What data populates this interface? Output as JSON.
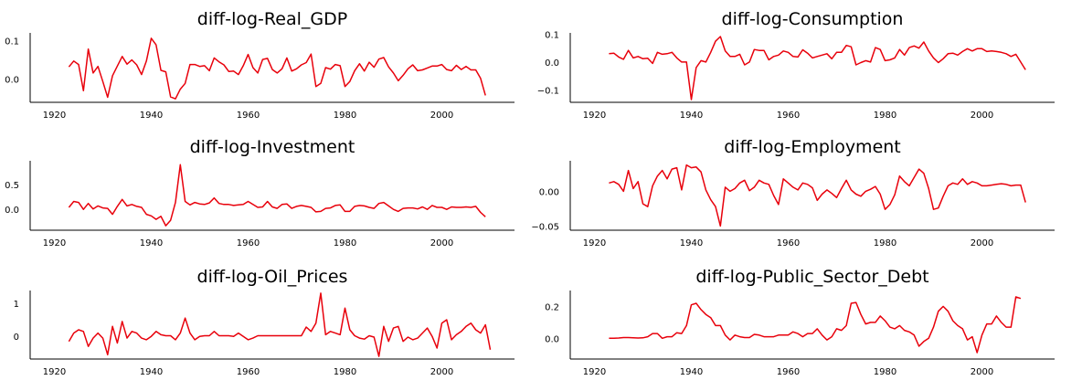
{
  "colors": {
    "line": "#e8000b",
    "axis": "#000000",
    "background": "#ffffff"
  },
  "chart_data": [
    {
      "type": "line",
      "title": "diff-log-Real_GDP",
      "xlim": [
        1915,
        2015
      ],
      "ylim": [
        -0.06,
        0.12
      ],
      "xticks": [
        1920,
        1940,
        1960,
        1980,
        2000
      ],
      "xtick_labels": [
        "1920",
        "1940",
        "1960",
        "1980",
        "2000"
      ],
      "yticks": [
        0.0,
        0.1
      ],
      "ytick_labels": [
        "0.0",
        "0.1"
      ],
      "x_start": 1923,
      "values": [
        0.032,
        0.047,
        0.038,
        -0.03,
        0.078,
        0.016,
        0.033,
        -0.006,
        -0.047,
        0.009,
        0.034,
        0.059,
        0.039,
        0.05,
        0.037,
        0.012,
        0.047,
        0.106,
        0.089,
        0.023,
        0.019,
        -0.046,
        -0.051,
        -0.026,
        -0.011,
        0.038,
        0.038,
        0.033,
        0.035,
        0.022,
        0.055,
        0.045,
        0.037,
        0.02,
        0.021,
        0.012,
        0.035,
        0.064,
        0.03,
        0.016,
        0.051,
        0.054,
        0.025,
        0.016,
        0.027,
        0.055,
        0.021,
        0.027,
        0.037,
        0.043,
        0.065,
        -0.019,
        -0.011,
        0.03,
        0.026,
        0.038,
        0.035,
        -0.019,
        -0.006,
        0.022,
        0.04,
        0.021,
        0.044,
        0.031,
        0.052,
        0.056,
        0.032,
        0.016,
        -0.004,
        0.01,
        0.027,
        0.037,
        0.022,
        0.024,
        0.029,
        0.034,
        0.034,
        0.038,
        0.025,
        0.022,
        0.036,
        0.025,
        0.033,
        0.024,
        0.024,
        0.002,
        -0.042
      ]
    },
    {
      "type": "line",
      "title": "diff-log-Consumption",
      "xlim": [
        1915,
        2015
      ],
      "ylim": [
        -0.145,
        0.105
      ],
      "xticks": [
        1920,
        1940,
        1960,
        1980,
        2000
      ],
      "xtick_labels": [
        "1920",
        "1940",
        "1960",
        "1980",
        "2000"
      ],
      "yticks": [
        -0.1,
        0.0,
        0.1
      ],
      "ytick_labels": [
        "−0.1",
        "0.0",
        "0.1"
      ],
      "x_start": 1923,
      "values": [
        0.03,
        0.032,
        0.018,
        0.01,
        0.042,
        0.015,
        0.02,
        0.012,
        0.014,
        -0.005,
        0.035,
        0.028,
        0.03,
        0.035,
        0.015,
        0.0,
        0.0,
        -0.135,
        -0.02,
        0.005,
        0.0,
        0.035,
        0.075,
        0.092,
        0.04,
        0.02,
        0.02,
        0.028,
        -0.01,
        0.0,
        0.045,
        0.042,
        0.042,
        0.008,
        0.02,
        0.025,
        0.04,
        0.035,
        0.02,
        0.018,
        0.044,
        0.032,
        0.015,
        0.02,
        0.025,
        0.03,
        0.012,
        0.035,
        0.035,
        0.06,
        0.055,
        -0.01,
        -0.002,
        0.005,
        0.0,
        0.052,
        0.045,
        0.005,
        0.008,
        0.015,
        0.045,
        0.025,
        0.052,
        0.058,
        0.05,
        0.072,
        0.04,
        0.015,
        -0.002,
        0.012,
        0.03,
        0.032,
        0.025,
        0.038,
        0.048,
        0.04,
        0.048,
        0.048,
        0.038,
        0.04,
        0.038,
        0.035,
        0.03,
        0.02,
        0.028,
        0.0,
        -0.028
      ]
    },
    {
      "type": "line",
      "title": "diff-log-Investment",
      "xlim": [
        1915,
        2015
      ],
      "ylim": [
        -0.42,
        0.98
      ],
      "xticks": [
        1920,
        1940,
        1960,
        1980,
        2000
      ],
      "xtick_labels": [
        "1920",
        "1940",
        "1960",
        "1980",
        "2000"
      ],
      "yticks": [
        0.0,
        0.5
      ],
      "ytick_labels": [
        "0.0",
        "0.5"
      ],
      "x_start": 1923,
      "values": [
        0.04,
        0.16,
        0.14,
        0.0,
        0.12,
        0.01,
        0.07,
        0.03,
        0.02,
        -0.1,
        0.06,
        0.2,
        0.07,
        0.1,
        0.06,
        0.04,
        -0.1,
        -0.13,
        -0.2,
        -0.14,
        -0.33,
        -0.22,
        0.14,
        0.9,
        0.16,
        0.09,
        0.14,
        0.11,
        0.1,
        0.13,
        0.23,
        0.12,
        0.1,
        0.1,
        0.08,
        0.09,
        0.1,
        0.16,
        0.1,
        0.04,
        0.05,
        0.16,
        0.05,
        0.02,
        0.1,
        0.11,
        0.02,
        0.06,
        0.08,
        0.06,
        0.04,
        -0.05,
        -0.04,
        0.02,
        0.03,
        0.08,
        0.09,
        -0.04,
        -0.04,
        0.06,
        0.08,
        0.07,
        0.04,
        0.02,
        0.12,
        0.14,
        0.07,
        0.0,
        -0.04,
        0.02,
        0.03,
        0.03,
        0.01,
        0.05,
        0.0,
        0.08,
        0.04,
        0.04,
        0.0,
        0.05,
        0.04,
        0.04,
        0.05,
        0.04,
        0.06,
        -0.06,
        -0.15
      ]
    },
    {
      "type": "line",
      "title": "diff-log-Employment",
      "xlim": [
        1915,
        2015
      ],
      "ylim": [
        -0.056,
        0.044
      ],
      "xticks": [
        1920,
        1940,
        1960,
        1980,
        2000
      ],
      "xtick_labels": [
        "1920",
        "1940",
        "1960",
        "1980",
        "2000"
      ],
      "yticks": [
        -0.05,
        0.0
      ],
      "ytick_labels": [
        "−0.05",
        "0.00"
      ],
      "x_start": 1923,
      "values": [
        0.012,
        0.014,
        0.01,
        0.0,
        0.03,
        0.004,
        0.014,
        -0.018,
        -0.022,
        0.008,
        0.022,
        0.03,
        0.018,
        0.032,
        0.034,
        0.002,
        0.038,
        0.034,
        0.035,
        0.028,
        0.002,
        -0.012,
        -0.022,
        -0.05,
        0.006,
        0.0,
        0.004,
        0.012,
        0.016,
        0.001,
        0.006,
        0.016,
        0.012,
        0.01,
        -0.006,
        -0.019,
        0.018,
        0.012,
        0.006,
        0.002,
        0.012,
        0.01,
        0.005,
        -0.013,
        -0.004,
        0.002,
        -0.003,
        -0.009,
        0.004,
        0.016,
        0.002,
        -0.004,
        -0.007,
        0.0,
        0.003,
        0.007,
        -0.004,
        -0.026,
        -0.019,
        -0.005,
        0.022,
        0.014,
        0.008,
        0.02,
        0.032,
        0.026,
        0.004,
        -0.026,
        -0.024,
        -0.007,
        0.008,
        0.012,
        0.01,
        0.018,
        0.01,
        0.014,
        0.012,
        0.008,
        0.008,
        0.009,
        0.01,
        0.011,
        0.01,
        0.008,
        0.009,
        0.009,
        -0.016
      ]
    },
    {
      "type": "line",
      "title": "diff-log-Oil_Prices",
      "xlim": [
        1915,
        2015
      ],
      "ylim": [
        -0.68,
        1.38
      ],
      "xticks": [
        1920,
        1940,
        1960,
        1980,
        2000
      ],
      "xtick_labels": [
        "1920",
        "1940",
        "1960",
        "1980",
        "2000"
      ],
      "yticks": [
        0,
        1
      ],
      "ytick_labels": [
        "0",
        "1"
      ],
      "x_start": 1923,
      "values": [
        -0.15,
        0.1,
        0.2,
        0.15,
        -0.3,
        -0.05,
        0.1,
        -0.05,
        -0.55,
        0.3,
        -0.2,
        0.45,
        -0.05,
        0.15,
        0.1,
        -0.05,
        -0.1,
        0.0,
        0.15,
        0.05,
        0.02,
        0.02,
        -0.1,
        0.1,
        0.55,
        0.1,
        -0.1,
        0.0,
        0.02,
        0.02,
        0.15,
        0.02,
        0.02,
        0.02,
        0.0,
        0.1,
        0.0,
        -0.1,
        -0.05,
        0.02,
        0.02,
        0.02,
        0.02,
        0.02,
        0.02,
        0.02,
        0.02,
        0.02,
        0.02,
        0.28,
        0.15,
        0.4,
        1.3,
        0.05,
        0.15,
        0.1,
        0.05,
        0.85,
        0.2,
        0.02,
        -0.05,
        -0.08,
        0.02,
        -0.02,
        -0.6,
        0.3,
        -0.15,
        0.25,
        0.3,
        -0.15,
        -0.02,
        -0.1,
        -0.05,
        0.1,
        0.25,
        0.0,
        -0.35,
        0.4,
        0.5,
        -0.1,
        0.05,
        0.15,
        0.3,
        0.4,
        0.2,
        0.1,
        0.35,
        -0.4
      ]
    },
    {
      "type": "line",
      "title": "diff-log-Public_Sector_Debt",
      "xlim": [
        1915,
        2015
      ],
      "ylim": [
        -0.13,
        0.3
      ],
      "xticks": [
        1920,
        1940,
        1960,
        1980,
        2000
      ],
      "xtick_labels": [
        "1920",
        "1940",
        "1960",
        "1980",
        "2000"
      ],
      "yticks": [
        0.0,
        0.2
      ],
      "ytick_labels": [
        "0.0",
        "0.2"
      ],
      "x_start": 1923,
      "values": [
        0.0,
        0.0,
        0.002,
        0.005,
        0.005,
        0.003,
        0.002,
        0.003,
        0.01,
        0.03,
        0.03,
        0.0,
        0.01,
        0.01,
        0.035,
        0.03,
        0.08,
        0.21,
        0.22,
        0.18,
        0.15,
        0.13,
        0.08,
        0.08,
        0.02,
        -0.01,
        0.02,
        0.01,
        0.005,
        0.005,
        0.025,
        0.02,
        0.01,
        0.01,
        0.01,
        0.02,
        0.02,
        0.02,
        0.04,
        0.03,
        0.01,
        0.03,
        0.03,
        0.06,
        0.02,
        -0.01,
        0.01,
        0.06,
        0.05,
        0.08,
        0.22,
        0.225,
        0.15,
        0.09,
        0.1,
        0.1,
        0.14,
        0.11,
        0.07,
        0.06,
        0.08,
        0.05,
        0.04,
        0.02,
        -0.05,
        -0.02,
        0.0,
        0.07,
        0.17,
        0.2,
        0.17,
        0.11,
        0.08,
        0.06,
        -0.01,
        0.01,
        -0.09,
        0.02,
        0.09,
        0.09,
        0.14,
        0.1,
        0.07,
        0.07,
        0.26,
        0.25
      ]
    }
  ]
}
